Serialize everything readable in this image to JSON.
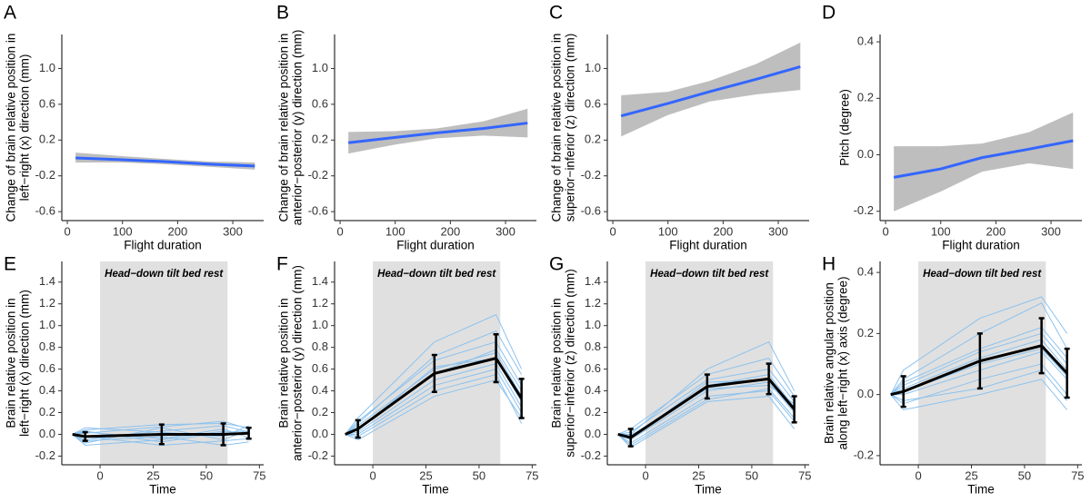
{
  "chart_data": [
    {
      "type": "line",
      "panel": "A",
      "ylabel": [
        "Change of brain relative position in",
        "left−right (x) direction (mm)"
      ],
      "xlabel": "Flight duration",
      "x": [
        15,
        100,
        175,
        260,
        340
      ],
      "xlim": [
        -10,
        356
      ],
      "ylim": [
        -0.7,
        1.38
      ],
      "xticks": [
        0,
        100,
        200,
        300
      ],
      "yticks": [
        -0.6,
        -0.2,
        0.2,
        0.6,
        {
          "value": 1,
          "label": "1.0"
        }
      ],
      "band_color": "#bebebe",
      "series": [
        {
          "color": "#3366ff",
          "values": [
            0.0,
            -0.02,
            -0.04,
            -0.07,
            -0.09
          ],
          "lower": [
            -0.05,
            -0.05,
            -0.07,
            -0.1,
            -0.13
          ],
          "upper": [
            0.06,
            0.02,
            -0.01,
            -0.04,
            -0.05
          ]
        }
      ]
    },
    {
      "type": "line",
      "panel": "B",
      "ylabel": [
        "Change of brain relative position in",
        "anterior−posterior (y) direction (mm)"
      ],
      "xlabel": "Flight duration",
      "x": [
        15,
        100,
        175,
        260,
        340
      ],
      "xlim": [
        -10,
        356
      ],
      "ylim": [
        -0.7,
        1.38
      ],
      "xticks": [
        0,
        100,
        200,
        300
      ],
      "yticks": [
        -0.6,
        -0.2,
        0.2,
        0.6,
        {
          "value": 1,
          "label": "1.0"
        }
      ],
      "band_color": "#bebebe",
      "series": [
        {
          "color": "#3366ff",
          "values": [
            0.17,
            0.23,
            0.28,
            0.33,
            0.39
          ],
          "lower": [
            0.05,
            0.15,
            0.22,
            0.25,
            0.23
          ],
          "upper": [
            0.29,
            0.3,
            0.33,
            0.41,
            0.55
          ]
        }
      ]
    },
    {
      "type": "line",
      "panel": "C",
      "ylabel": [
        "Change of brain relative position in",
        "superior−inferior (z) direction (mm)"
      ],
      "xlabel": "Flight duration",
      "x": [
        15,
        100,
        175,
        260,
        340
      ],
      "xlim": [
        -10,
        356
      ],
      "ylim": [
        -0.7,
        1.38
      ],
      "xticks": [
        0,
        100,
        200,
        300
      ],
      "yticks": [
        -0.6,
        -0.2,
        0.2,
        0.6,
        {
          "value": 1,
          "label": "1.0"
        }
      ],
      "band_color": "#bebebe",
      "series": [
        {
          "color": "#3366ff",
          "values": [
            0.47,
            0.61,
            0.74,
            0.88,
            1.02
          ],
          "lower": [
            0.24,
            0.48,
            0.63,
            0.71,
            0.76
          ],
          "upper": [
            0.7,
            0.74,
            0.86,
            1.05,
            1.29
          ]
        }
      ]
    },
    {
      "type": "line",
      "panel": "D",
      "ylabel": [
        "Pitch (degree)"
      ],
      "xlabel": "Flight duration",
      "x": [
        15,
        100,
        175,
        260,
        340
      ],
      "xlim": [
        -10,
        356
      ],
      "ylim": [
        -0.233,
        0.426
      ],
      "xticks": [
        0,
        100,
        200,
        300
      ],
      "yticks": [
        -0.2,
        {
          "value": 0,
          "label": "0.0"
        },
        0.2,
        0.4
      ],
      "band_color": "#bebebe",
      "series": [
        {
          "color": "#3366ff",
          "values": [
            -0.08,
            -0.05,
            -0.01,
            0.02,
            0.05
          ],
          "lower": [
            -0.2,
            -0.13,
            -0.06,
            -0.03,
            -0.05
          ],
          "upper": [
            0.03,
            0.03,
            0.04,
            0.08,
            0.15
          ]
        }
      ]
    },
    {
      "type": "errorline",
      "panel": "E",
      "ylabel": [
        "Brain relative position in",
        "left−right (x) direction (mm)"
      ],
      "xlabel": "Time",
      "x": [
        -13,
        -7,
        29,
        58,
        70
      ],
      "xlim": [
        -18,
        77
      ],
      "ylim": [
        -0.28,
        1.59
      ],
      "xticks": [
        0,
        25,
        50,
        75
      ],
      "yticks": [
        -0.2,
        {
          "value": 0,
          "label": "0.0"
        },
        0.2,
        0.4,
        0.6,
        0.8,
        {
          "value": 1,
          "label": "1.0"
        },
        1.2,
        1.4
      ],
      "shade": [
        0,
        60
      ],
      "shade_color": "#e0e0e0",
      "annotation": "Head−down tilt bed rest",
      "mean": {
        "color": "#000000",
        "values": [
          0,
          -0.02,
          0.0,
          0.0,
          0.01
        ],
        "errors": [
          null,
          0.04,
          0.09,
          0.1,
          0.05
        ]
      },
      "subject_color": "#8cc2ee",
      "subjects": [
        [
          0,
          -0.05,
          0.03,
          0.08,
          0.02
        ],
        [
          0,
          0.02,
          -0.04,
          0.05,
          -0.03
        ],
        [
          0,
          -0.08,
          0.06,
          -0.05,
          0.04
        ],
        [
          0,
          0.04,
          0.09,
          0.1,
          0.06
        ],
        [
          0,
          -0.02,
          -0.1,
          -0.06,
          -0.04
        ],
        [
          0,
          0.06,
          0.02,
          -0.02,
          0.08
        ],
        [
          0,
          -0.1,
          -0.05,
          0.03,
          0.0
        ],
        [
          0,
          0.01,
          0.07,
          0.12,
          0.05
        ],
        [
          0,
          -0.06,
          -0.02,
          -0.1,
          -0.07
        ],
        [
          0,
          0.03,
          -0.07,
          0.02,
          0.03
        ]
      ]
    },
    {
      "type": "errorline",
      "panel": "F",
      "ylabel": [
        "Brain relative position in",
        "anterior−posterior (y) direction (mm)"
      ],
      "xlabel": "Time",
      "x": [
        -13,
        -7,
        29,
        58,
        70
      ],
      "xlim": [
        -18,
        77
      ],
      "ylim": [
        -0.28,
        1.59
      ],
      "xticks": [
        0,
        25,
        50,
        75
      ],
      "yticks": [
        -0.2,
        {
          "value": 0,
          "label": "0.0"
        },
        0.2,
        0.4,
        0.6,
        0.8,
        {
          "value": 1,
          "label": "1.0"
        },
        1.2,
        1.4
      ],
      "shade": [
        0,
        60
      ],
      "shade_color": "#e0e0e0",
      "annotation": "Head−down tilt bed rest",
      "mean": {
        "color": "#000000",
        "values": [
          0,
          0.05,
          0.56,
          0.7,
          0.33
        ],
        "errors": [
          null,
          0.08,
          0.17,
          0.22,
          0.18
        ]
      },
      "subject_color": "#8cc2ee",
      "subjects": [
        [
          0,
          0.1,
          0.72,
          0.95,
          0.55
        ],
        [
          0,
          0.0,
          0.45,
          0.6,
          0.2
        ],
        [
          0,
          0.15,
          0.85,
          1.1,
          0.6
        ],
        [
          0,
          -0.05,
          0.35,
          0.5,
          0.15
        ],
        [
          0,
          0.08,
          0.6,
          0.75,
          0.35
        ],
        [
          0,
          0.02,
          0.5,
          0.65,
          0.25
        ],
        [
          0,
          0.12,
          0.68,
          0.85,
          0.45
        ],
        [
          0,
          -0.02,
          0.4,
          0.55,
          0.1
        ],
        [
          0,
          0.06,
          0.55,
          0.78,
          0.4
        ],
        [
          0,
          0.04,
          0.62,
          0.7,
          0.3
        ]
      ]
    },
    {
      "type": "errorline",
      "panel": "G",
      "ylabel": [
        "Brain relative position in",
        "superior−inferior (z) direction (mm)"
      ],
      "xlabel": "Time",
      "x": [
        -13,
        -7,
        29,
        58,
        70
      ],
      "xlim": [
        -18,
        77
      ],
      "ylim": [
        -0.28,
        1.59
      ],
      "xticks": [
        0,
        25,
        50,
        75
      ],
      "yticks": [
        -0.2,
        {
          "value": 0,
          "label": "0.0"
        },
        0.2,
        0.4,
        0.6,
        0.8,
        {
          "value": 1,
          "label": "1.0"
        },
        1.2,
        1.4
      ],
      "shade": [
        0,
        60
      ],
      "shade_color": "#e0e0e0",
      "annotation": "Head−down tilt bed rest",
      "mean": {
        "color": "#000000",
        "values": [
          0,
          -0.03,
          0.44,
          0.51,
          0.23
        ],
        "errors": [
          null,
          0.08,
          0.11,
          0.14,
          0.12
        ]
      },
      "subject_color": "#8cc2ee",
      "subjects": [
        [
          0,
          0.05,
          0.55,
          0.7,
          0.35
        ],
        [
          0,
          -0.08,
          0.35,
          0.4,
          0.12
        ],
        [
          0,
          0.0,
          0.6,
          0.85,
          0.4
        ],
        [
          0,
          -0.12,
          0.3,
          0.35,
          0.05
        ],
        [
          0,
          -0.02,
          0.45,
          0.55,
          0.25
        ],
        [
          0,
          -0.05,
          0.4,
          0.48,
          0.2
        ],
        [
          0,
          0.02,
          0.5,
          0.6,
          0.3
        ],
        [
          0,
          -0.1,
          0.32,
          0.42,
          0.15
        ],
        [
          0,
          -0.04,
          0.48,
          0.5,
          0.22
        ],
        [
          0,
          -0.01,
          0.42,
          0.45,
          0.28
        ]
      ]
    },
    {
      "type": "errorline",
      "panel": "H",
      "ylabel": [
        "Brain relative angular position",
        "along left−right (x) axis (degree)"
      ],
      "xlabel": "Time",
      "x": [
        -13,
        -7,
        29,
        58,
        70
      ],
      "xlim": [
        -18,
        77
      ],
      "ylim": [
        -0.23,
        0.436
      ],
      "xticks": [
        0,
        25,
        50,
        75
      ],
      "yticks": [
        -0.2,
        {
          "value": 0,
          "label": "0.0"
        },
        0.2,
        0.4
      ],
      "shade": [
        0,
        60
      ],
      "shade_color": "#e0e0e0",
      "annotation": "Head−down tilt bed rest",
      "mean": {
        "color": "#000000",
        "values": [
          0,
          0.01,
          0.11,
          0.16,
          0.07
        ],
        "errors": [
          null,
          0.05,
          0.09,
          0.09,
          0.08
        ]
      },
      "subject_color": "#8cc2ee",
      "subjects": [
        [
          0,
          0.05,
          0.2,
          0.3,
          0.15
        ],
        [
          0,
          -0.03,
          0.05,
          0.1,
          0.0
        ],
        [
          0,
          0.08,
          0.25,
          0.32,
          0.2
        ],
        [
          0,
          -0.05,
          0.0,
          0.05,
          -0.05
        ],
        [
          0,
          0.02,
          0.12,
          0.18,
          0.08
        ],
        [
          0,
          0.0,
          0.08,
          0.14,
          0.05
        ],
        [
          0,
          0.04,
          0.15,
          0.22,
          0.12
        ],
        [
          0,
          -0.02,
          0.02,
          0.08,
          -0.02
        ],
        [
          0,
          0.01,
          0.1,
          0.15,
          0.06
        ],
        [
          0,
          0.03,
          0.14,
          0.2,
          0.1
        ]
      ]
    }
  ]
}
